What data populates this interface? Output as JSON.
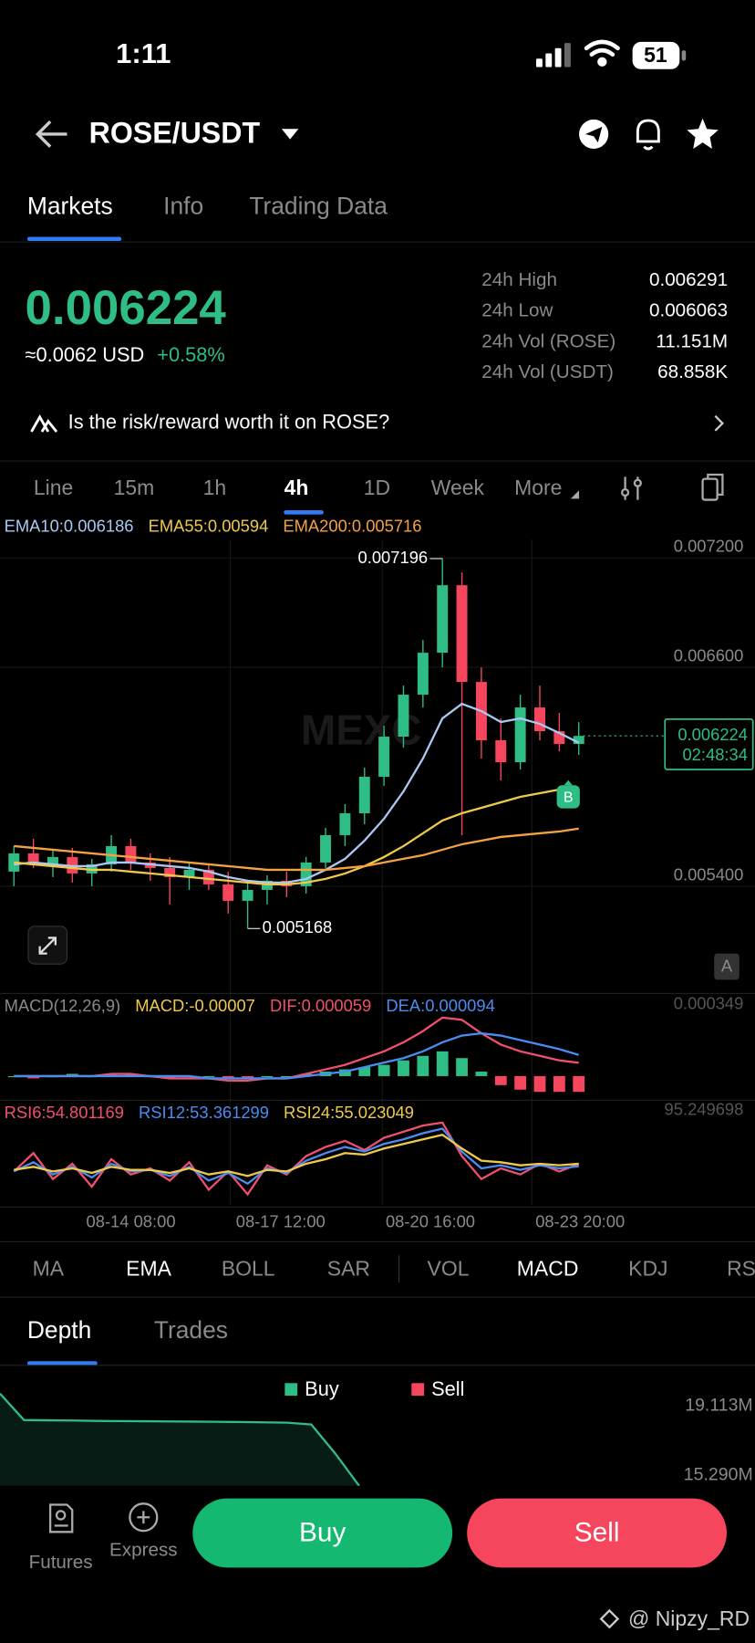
{
  "status_bar": {
    "time": "1:11",
    "battery": "51"
  },
  "header": {
    "pair": "ROSE/USDT"
  },
  "tabs": {
    "items": [
      "Markets",
      "Info",
      "Trading Data"
    ],
    "active": 0
  },
  "ticker": {
    "price": "0.006224",
    "usd": "≈0.0062 USD",
    "change": "+0.58%",
    "stats": [
      {
        "label": "24h High",
        "value": "0.006291"
      },
      {
        "label": "24h Low",
        "value": "0.006063"
      },
      {
        "label": "24h Vol (ROSE)",
        "value": "11.151M"
      },
      {
        "label": "24h Vol (USDT)",
        "value": "68.858K"
      }
    ]
  },
  "banner": "Is the risk/reward worth it on ROSE?",
  "intervals": {
    "items": [
      "Line",
      "15m",
      "1h",
      "4h",
      "1D",
      "Week",
      "More"
    ],
    "active": 3
  },
  "chart_data": [
    {
      "type": "candlestick",
      "up_color": "#2ebd85",
      "down_color": "#f6465d",
      "open": [
        0.00548,
        0.00558,
        0.00552,
        0.00556,
        0.00547,
        0.00552,
        0.00562,
        0.00553,
        0.0055,
        0.00545,
        0.00549,
        0.00541,
        0.00532,
        0.00538,
        0.00543,
        0.0054,
        0.00553,
        0.00568,
        0.0058,
        0.006,
        0.00622,
        0.00645,
        0.00668,
        0.00705,
        0.00652,
        0.0062,
        0.00608,
        0.00638,
        0.00625,
        0.00618
      ],
      "high": [
        0.00562,
        0.00566,
        0.0056,
        0.00561,
        0.00555,
        0.00568,
        0.00566,
        0.00558,
        0.00556,
        0.00553,
        0.00552,
        0.00548,
        0.00542,
        0.00546,
        0.00548,
        0.00556,
        0.00572,
        0.00585,
        0.00605,
        0.00628,
        0.0065,
        0.00675,
        0.007196,
        0.00712,
        0.0066,
        0.00632,
        0.00645,
        0.0065,
        0.00635,
        0.0063
      ],
      "low": [
        0.0054,
        0.0055,
        0.00545,
        0.00542,
        0.0054,
        0.00548,
        0.00549,
        0.00543,
        0.0053,
        0.00538,
        0.00538,
        0.00525,
        0.005168,
        0.0053,
        0.00534,
        0.00536,
        0.0055,
        0.00562,
        0.00574,
        0.00595,
        0.00616,
        0.00638,
        0.0066,
        0.00568,
        0.0061,
        0.00598,
        0.00604,
        0.0062,
        0.00614,
        0.00612
      ],
      "close": [
        0.00558,
        0.00552,
        0.00556,
        0.00547,
        0.00552,
        0.00562,
        0.00553,
        0.0055,
        0.00545,
        0.00549,
        0.00541,
        0.00532,
        0.00538,
        0.00543,
        0.0054,
        0.00553,
        0.00568,
        0.0058,
        0.006,
        0.00622,
        0.00645,
        0.00668,
        0.00705,
        0.00652,
        0.0062,
        0.00608,
        0.00638,
        0.00625,
        0.00618,
        0.006224
      ],
      "series": [
        {
          "name": "EMA10:0.006186",
          "color": "#a9c9f2",
          "values": [
            0.00552,
            0.00553,
            0.00552,
            0.00551,
            0.00551,
            0.00553,
            0.00553,
            0.00552,
            0.00551,
            0.0055,
            0.00548,
            0.00545,
            0.00543,
            0.00542,
            0.00542,
            0.00544,
            0.00549,
            0.00555,
            0.00565,
            0.00577,
            0.00592,
            0.0061,
            0.00632,
            0.0064,
            0.00636,
            0.0063,
            0.00632,
            0.00629,
            0.00624,
            0.006186
          ]
        },
        {
          "name": "EMA55:0.00594",
          "color": "#f0c94a",
          "values": [
            0.00553,
            0.00552,
            0.00551,
            0.0055,
            0.00549,
            0.00549,
            0.00548,
            0.00547,
            0.00546,
            0.00545,
            0.00544,
            0.00543,
            0.00542,
            0.00541,
            0.00541,
            0.00542,
            0.00544,
            0.00547,
            0.00551,
            0.00556,
            0.00562,
            0.00569,
            0.00576,
            0.0058,
            0.00583,
            0.00586,
            0.00589,
            0.00591,
            0.00593,
            0.00594
          ]
        },
        {
          "name": "EMA200:0.005716",
          "color": "#f5a142",
          "values": [
            0.00562,
            0.00561,
            0.0056,
            0.00559,
            0.00558,
            0.00557,
            0.00556,
            0.00555,
            0.00554,
            0.00553,
            0.00552,
            0.00551,
            0.0055,
            0.00549,
            0.00549,
            0.00549,
            0.00549,
            0.0055,
            0.00551,
            0.00553,
            0.00555,
            0.00557,
            0.0056,
            0.00563,
            0.00565,
            0.00567,
            0.00568,
            0.00569,
            0.0057,
            0.005716
          ]
        }
      ],
      "ylim": [
        0.00483,
        0.0073
      ],
      "yticks": [
        {
          "value": 0.0072,
          "label": "0.007200"
        },
        {
          "value": 0.0066,
          "label": "0.006600"
        },
        {
          "value": 0.0054,
          "label": "0.005400"
        }
      ],
      "countdown": "02:48:34",
      "marker": "B",
      "scale_button": "A"
    },
    {
      "type": "macd",
      "title": "MACD(12,26,9)",
      "up_color": "#2ebd85",
      "down_color": "#f6465d",
      "series": [
        {
          "name": "MACD:-0.00007",
          "color": "#f0c94a",
          "values": [
            0,
            -1e-05,
            0,
            1e-05,
            0,
            1e-05,
            1e-05,
            0,
            -1e-05,
            0,
            0,
            -1e-05,
            -1e-05,
            0,
            0,
            1e-05,
            2e-05,
            3e-05,
            4e-05,
            5e-05,
            7e-05,
            9e-05,
            0.00011,
            8e-05,
            2e-05,
            -4e-05,
            -6e-05,
            -7e-05,
            -7e-05,
            -7e-05
          ]
        },
        {
          "name": "DIF:0.000059",
          "color": "#f0506e",
          "values": [
            0,
            0,
            0,
            0,
            0,
            1e-05,
            1e-05,
            0,
            -1e-05,
            -1e-05,
            -1e-05,
            -2e-05,
            -2e-05,
            -1e-05,
            -1e-05,
            1e-05,
            3e-05,
            5e-05,
            8e-05,
            0.00011,
            0.00015,
            0.0002,
            0.00026,
            0.00025,
            0.00019,
            0.00014,
            0.00011,
            9e-05,
            7e-05,
            5.9e-05
          ]
        },
        {
          "name": "DEA:0.000094",
          "color": "#4a8cf0",
          "values": [
            0,
            0,
            0,
            0,
            0,
            0,
            0,
            0,
            0,
            0,
            -1e-05,
            -1e-05,
            -1e-05,
            -1e-05,
            -1e-05,
            0,
            1e-05,
            2e-05,
            4e-05,
            6e-05,
            8e-05,
            0.00011,
            0.00015,
            0.00018,
            0.00019,
            0.00018,
            0.00016,
            0.00014,
            0.00012,
            9.4e-05
          ]
        }
      ],
      "ylim": [
        -0.000107,
        0.000349
      ],
      "yticks": [
        0.000349
      ]
    },
    {
      "type": "rsi",
      "series": [
        {
          "name": "RSI6:54.801169",
          "color": "#f0506e",
          "values": [
            50,
            62,
            45,
            55,
            40,
            58,
            48,
            52,
            44,
            56,
            38,
            50,
            35,
            54,
            48,
            60,
            66,
            70,
            64,
            72,
            76,
            80,
            82,
            60,
            45,
            52,
            48,
            55,
            50,
            54.801169
          ]
        },
        {
          "name": "RSI12:53.361299",
          "color": "#4a8cf0",
          "values": [
            50,
            56,
            48,
            53,
            46,
            55,
            50,
            51,
            47,
            53,
            44,
            49,
            42,
            52,
            49,
            57,
            62,
            66,
            63,
            68,
            71,
            75,
            78,
            63,
            52,
            54,
            51,
            54,
            52,
            53.361299
          ]
        },
        {
          "name": "RSI24:55.023049",
          "color": "#f0c94a",
          "values": [
            51,
            53,
            50,
            52,
            49,
            53,
            51,
            51,
            49,
            52,
            48,
            50,
            47,
            51,
            50,
            55,
            58,
            62,
            61,
            65,
            68,
            71,
            74,
            65,
            57,
            56,
            54,
            55,
            54,
            55.023049
          ]
        }
      ],
      "ylim": [
        28,
        95.249698
      ],
      "yticks": [
        95.249698
      ],
      "time_labels": [
        "08-14 08:00",
        "08-17 12:00",
        "08-20 16:00",
        "08-23 20:00"
      ]
    },
    {
      "type": "depth",
      "legend": [
        {
          "name": "Buy",
          "color": "#2ebd85"
        },
        {
          "name": "Sell",
          "color": "#f6465d"
        }
      ],
      "values": [
        19810000,
        18350000,
        18330000,
        18320000,
        18300000,
        18290000,
        18280000,
        18270000,
        18260000,
        18250000,
        18240000,
        18220000,
        18200000,
        18100000,
        16500000,
        14710000
      ],
      "ylim": [
        14710000,
        21430000
      ],
      "yticks": [
        {
          "value": 19113000,
          "label": "19.113M"
        },
        {
          "value": 15290000,
          "label": "15.290M"
        }
      ]
    }
  ],
  "indicator_tabs": {
    "items": [
      "MA",
      "EMA",
      "BOLL",
      "SAR",
      "VOL",
      "MACD",
      "KDJ",
      "RS"
    ],
    "active": [
      1,
      5
    ]
  },
  "book_tabs": {
    "items": [
      "Depth",
      "Trades"
    ],
    "active": 0
  },
  "actions": {
    "futures": "Futures",
    "express": "Express",
    "buy": "Buy",
    "sell": "Sell"
  },
  "watermark": "@ Nipzy_RD"
}
